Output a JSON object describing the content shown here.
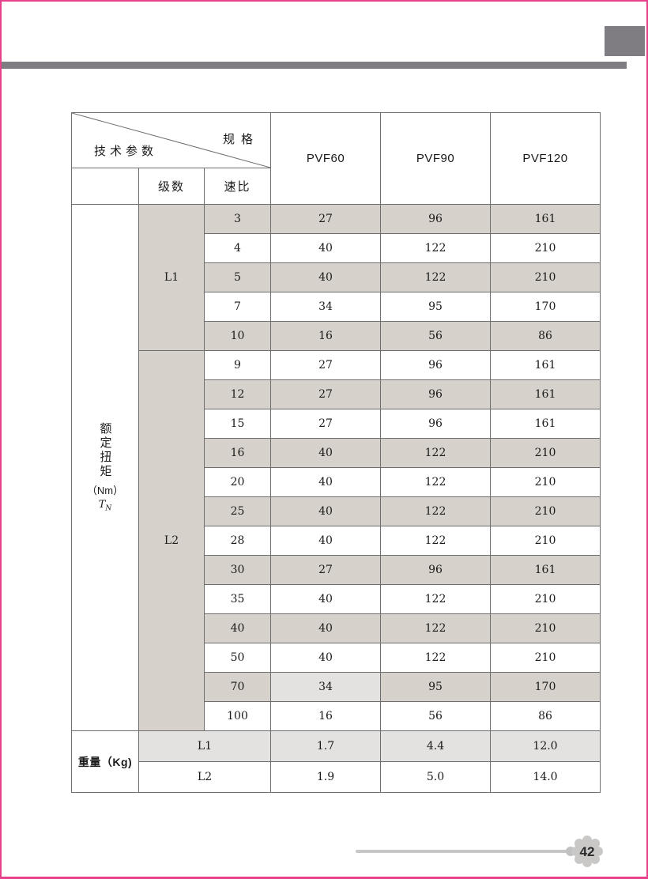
{
  "page": {
    "number": "42",
    "border_color": "#e8418c",
    "accent_gray": "#7f7d82",
    "shade_warm": "#d6d2cb",
    "shade_light": "#e3e2e0"
  },
  "icons": {
    "gear_badge": "gear-page-number-icon"
  },
  "table": {
    "corner": {
      "top_right": "规格",
      "bottom_left": "技术参数"
    },
    "col_headers": [
      "PVF60",
      "PVF90",
      "PVF120"
    ],
    "sub_headers": {
      "stages": "级数",
      "ratio": "速比"
    },
    "row_group_label": {
      "title_vertical": "额定扭矩",
      "unit": "（Nm）",
      "symbol": "T",
      "symbol_sub": "N"
    },
    "groups": [
      {
        "label": "L1",
        "rows": [
          {
            "ratio": "3",
            "values": [
              "27",
              "96",
              "161"
            ],
            "shaded": true
          },
          {
            "ratio": "4",
            "values": [
              "40",
              "122",
              "210"
            ],
            "shaded": false
          },
          {
            "ratio": "5",
            "values": [
              "40",
              "122",
              "210"
            ],
            "shaded": true
          },
          {
            "ratio": "7",
            "values": [
              "34",
              "95",
              "170"
            ],
            "shaded": false
          },
          {
            "ratio": "10",
            "values": [
              "16",
              "56",
              "86"
            ],
            "shaded": true
          }
        ]
      },
      {
        "label": "L2",
        "rows": [
          {
            "ratio": "9",
            "values": [
              "27",
              "96",
              "161"
            ],
            "shaded": false
          },
          {
            "ratio": "12",
            "values": [
              "27",
              "96",
              "161"
            ],
            "shaded": true
          },
          {
            "ratio": "15",
            "values": [
              "27",
              "96",
              "161"
            ],
            "shaded": false
          },
          {
            "ratio": "16",
            "values": [
              "40",
              "122",
              "210"
            ],
            "shaded": true
          },
          {
            "ratio": "20",
            "values": [
              "40",
              "122",
              "210"
            ],
            "shaded": false
          },
          {
            "ratio": "25",
            "values": [
              "40",
              "122",
              "210"
            ],
            "shaded": true
          },
          {
            "ratio": "28",
            "values": [
              "40",
              "122",
              "210"
            ],
            "shaded": false
          },
          {
            "ratio": "30",
            "values": [
              "27",
              "96",
              "161"
            ],
            "shaded": true
          },
          {
            "ratio": "35",
            "values": [
              "40",
              "122",
              "210"
            ],
            "shaded": false
          },
          {
            "ratio": "40",
            "values": [
              "40",
              "122",
              "210"
            ],
            "shaded": true
          },
          {
            "ratio": "50",
            "values": [
              "40",
              "122",
              "210"
            ],
            "shaded": false
          },
          {
            "ratio": "70",
            "values": [
              "34",
              "95",
              "170"
            ],
            "shaded": true,
            "first_light": true
          },
          {
            "ratio": "100",
            "values": [
              "16",
              "56",
              "86"
            ],
            "shaded": false
          }
        ]
      }
    ],
    "weight": {
      "label": "重量（Kg)",
      "rows": [
        {
          "label": "L1",
          "values": [
            "1.7",
            "4.4",
            "12.0"
          ],
          "shaded": true
        },
        {
          "label": "L2",
          "values": [
            "1.9",
            "5.0",
            "14.0"
          ],
          "shaded": false
        }
      ]
    }
  }
}
